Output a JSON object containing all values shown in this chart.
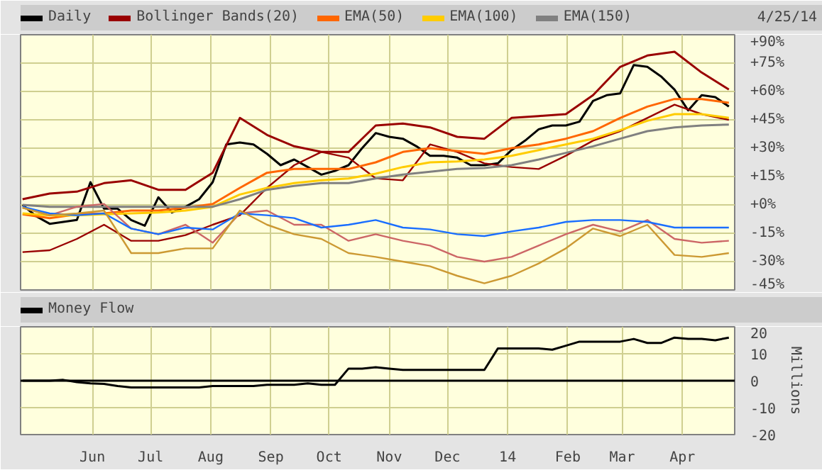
{
  "chart_data": [
    {
      "type": "line",
      "annotations": [
        "4/25/14"
      ],
      "x": [
        "2013-04-26",
        "2013-05-03",
        "2013-05-10",
        "2013-05-17",
        "2013-05-24",
        "2013-05-31",
        "2013-06-07",
        "2013-06-14",
        "2013-06-21",
        "2013-06-28",
        "2013-07-05",
        "2013-07-12",
        "2013-07-19",
        "2013-07-26",
        "2013-08-02",
        "2013-08-09",
        "2013-08-16",
        "2013-08-23",
        "2013-08-30",
        "2013-09-06",
        "2013-09-13",
        "2013-09-20",
        "2013-09-27",
        "2013-10-04",
        "2013-10-11",
        "2013-10-18",
        "2013-10-25",
        "2013-11-01",
        "2013-11-08",
        "2013-11-15",
        "2013-11-22",
        "2013-11-29",
        "2013-12-06",
        "2013-12-13",
        "2013-12-20",
        "2013-12-27",
        "2014-01-03",
        "2014-01-10",
        "2014-01-17",
        "2014-01-24",
        "2014-01-31",
        "2014-02-07",
        "2014-02-14",
        "2014-02-21",
        "2014-02-28",
        "2014-03-07",
        "2014-03-14",
        "2014-03-21",
        "2014-03-28",
        "2014-04-04",
        "2014-04-11",
        "2014-04-18",
        "2014-04-25"
      ],
      "series": [
        {
          "name": "Daily",
          "color": "#000000",
          "values": [
            0,
            -6,
            -10,
            -9,
            -8,
            12,
            -2,
            -2,
            -8,
            -11,
            4,
            -4,
            -1,
            3,
            12,
            32,
            33,
            32,
            27,
            21,
            24,
            20,
            16,
            18,
            21,
            30,
            38,
            36,
            35,
            31,
            26,
            26,
            25,
            21,
            21,
            22,
            29,
            34,
            40,
            42,
            42,
            44,
            55,
            58,
            59,
            74,
            73,
            68,
            61,
            50,
            58,
            57,
            52
          ]
        },
        {
          "name": "Bollinger Bands(20)",
          "color": "#990000",
          "x": [
            "2013-04-26",
            "2013-05-10",
            "2013-05-24",
            "2013-06-07",
            "2013-06-21",
            "2013-07-05",
            "2013-07-19",
            "2013-08-02",
            "2013-08-16",
            "2013-08-30",
            "2013-09-13",
            "2013-09-27",
            "2013-10-11",
            "2013-10-25",
            "2013-11-08",
            "2013-11-22",
            "2013-12-06",
            "2013-12-20",
            "2014-01-03",
            "2014-01-17",
            "2014-01-31",
            "2014-02-14",
            "2014-02-28",
            "2014-03-14",
            "2014-03-28",
            "2014-04-11",
            "2014-04-25"
          ],
          "values": [
            3,
            6,
            7,
            11.5,
            13,
            8,
            8,
            17,
            46,
            37,
            31,
            28,
            28,
            42,
            43,
            41,
            36,
            35,
            46,
            47,
            48,
            58,
            73,
            79,
            81,
            70,
            61
          ]
        },
        {
          "color": "#990000",
          "x": [
            "2013-04-26",
            "2013-05-10",
            "2013-05-24",
            "2013-06-07",
            "2013-06-21",
            "2013-07-05",
            "2013-07-19",
            "2013-08-02",
            "2013-08-16",
            "2013-08-30",
            "2013-09-13",
            "2013-09-27",
            "2013-10-11",
            "2013-10-25",
            "2013-11-08",
            "2013-11-22",
            "2013-12-06",
            "2013-12-20",
            "2014-01-03",
            "2014-01-17",
            "2014-01-31",
            "2014-02-14",
            "2014-02-28",
            "2014-03-14",
            "2014-03-28",
            "2014-04-11",
            "2014-04-25"
          ],
          "values": [
            -25,
            -24,
            -18,
            -10.5,
            -19,
            -19,
            -16,
            -10.5,
            -5.5,
            9,
            21,
            28,
            25,
            14,
            13,
            32,
            28,
            22,
            20,
            19,
            26,
            34,
            39,
            46,
            53,
            48,
            45
          ]
        },
        {
          "name": "EMA(50)",
          "color": "#ff6600",
          "x": [
            "2013-04-26",
            "2013-05-10",
            "2013-05-24",
            "2013-06-07",
            "2013-06-21",
            "2013-07-05",
            "2013-07-19",
            "2013-08-02",
            "2013-08-16",
            "2013-08-30",
            "2013-09-13",
            "2013-09-27",
            "2013-10-11",
            "2013-10-25",
            "2013-11-08",
            "2013-11-22",
            "2013-12-06",
            "2013-12-20",
            "2014-01-03",
            "2014-01-17",
            "2014-01-31",
            "2014-02-14",
            "2014-02-28",
            "2014-03-14",
            "2014-03-28",
            "2014-04-11",
            "2014-04-25"
          ],
          "values": [
            -5,
            -7,
            -5,
            -4.5,
            -3,
            -3,
            -1.5,
            0.5,
            9,
            17,
            19,
            19,
            19,
            22.5,
            28,
            30,
            28.5,
            27,
            30,
            32,
            35,
            39,
            46,
            52,
            56,
            56,
            54
          ]
        },
        {
          "name": "EMA(100)",
          "color": "#ffcc00",
          "x": [
            "2013-04-26",
            "2013-05-10",
            "2013-05-24",
            "2013-06-07",
            "2013-06-21",
            "2013-07-05",
            "2013-07-19",
            "2013-08-02",
            "2013-08-16",
            "2013-08-30",
            "2013-09-13",
            "2013-09-27",
            "2013-10-11",
            "2013-10-25",
            "2013-11-08",
            "2013-11-22",
            "2013-12-06",
            "2013-12-20",
            "2014-01-03",
            "2014-01-17",
            "2014-01-31",
            "2014-02-14",
            "2014-02-28",
            "2014-03-14",
            "2014-03-28",
            "2014-04-11",
            "2014-04-25"
          ],
          "values": [
            -4.5,
            -5.5,
            -5.5,
            -5,
            -4.5,
            -4,
            -3,
            -1,
            5.5,
            9,
            11.5,
            13,
            14,
            16.5,
            20,
            22.5,
            23,
            24,
            26,
            29,
            32,
            35,
            39.5,
            44.5,
            48,
            48,
            46
          ]
        },
        {
          "name": "EMA(150)",
          "color": "#808080",
          "x": [
            "2013-04-26",
            "2013-05-10",
            "2013-05-24",
            "2013-06-07",
            "2013-06-21",
            "2013-07-05",
            "2013-07-19",
            "2013-08-02",
            "2013-08-16",
            "2013-08-30",
            "2013-09-13",
            "2013-09-27",
            "2013-10-11",
            "2013-10-25",
            "2013-11-08",
            "2013-11-22",
            "2013-12-06",
            "2013-12-20",
            "2014-01-03",
            "2014-01-17",
            "2014-01-31",
            "2014-02-14",
            "2014-02-28",
            "2014-03-14",
            "2014-03-28",
            "2014-04-11",
            "2014-04-25"
          ],
          "values": [
            0,
            -1,
            -1,
            -1,
            -1,
            -1,
            -1,
            -1,
            3,
            8,
            10,
            11.5,
            11.5,
            14,
            16,
            17.5,
            19,
            19.5,
            21,
            24,
            27.5,
            31,
            35,
            39,
            41,
            42,
            42.5
          ]
        },
        {
          "color": "#cc6666",
          "x": [
            "2013-04-26",
            "2013-05-10",
            "2013-05-24",
            "2013-06-07",
            "2013-06-21",
            "2013-07-05",
            "2013-07-19",
            "2013-08-02",
            "2013-08-16",
            "2013-08-30",
            "2013-09-13",
            "2013-09-27",
            "2013-10-11",
            "2013-10-25",
            "2013-11-08",
            "2013-11-22",
            "2013-12-06",
            "2013-12-20",
            "2014-01-03",
            "2014-01-17",
            "2014-01-31",
            "2014-02-14",
            "2014-02-28",
            "2014-03-14",
            "2014-03-28",
            "2014-04-11",
            "2014-04-25"
          ],
          "values": [
            -1.5,
            -5.5,
            -1,
            0.5,
            -12.5,
            -15.5,
            -10.5,
            -20,
            -4.5,
            -3,
            -10.5,
            -10.5,
            -19,
            -15.5,
            -19,
            -21.5,
            -27.5,
            -30,
            -27.5,
            -21.5,
            -15.5,
            -10.5,
            -14,
            -8,
            -18,
            -20,
            -19
          ]
        },
        {
          "color": "#1a6eff",
          "x": [
            "2013-04-26",
            "2013-05-10",
            "2013-05-24",
            "2013-06-07",
            "2013-06-21",
            "2013-07-05",
            "2013-07-19",
            "2013-08-02",
            "2013-08-16",
            "2013-08-30",
            "2013-09-13",
            "2013-09-27",
            "2013-10-11",
            "2013-10-25",
            "2013-11-08",
            "2013-11-22",
            "2013-12-06",
            "2013-12-20",
            "2014-01-03",
            "2014-01-17",
            "2014-01-31",
            "2014-02-14",
            "2014-02-28",
            "2014-03-14",
            "2014-03-28",
            "2014-04-11",
            "2014-04-25"
          ],
          "values": [
            -1,
            -4.5,
            -5.5,
            -4.5,
            -12.5,
            -15.5,
            -12,
            -13,
            -4.5,
            -5.5,
            -7,
            -12,
            -10.5,
            -8,
            -12,
            -13,
            -15.5,
            -16.5,
            -14,
            -12,
            -9,
            -8,
            -8,
            -9,
            -12,
            -12,
            -12
          ]
        },
        {
          "color": "#cc9933",
          "x": [
            "2013-04-26",
            "2013-05-10",
            "2013-05-24",
            "2013-06-07",
            "2013-06-21",
            "2013-07-05",
            "2013-07-19",
            "2013-08-02",
            "2013-08-16",
            "2013-08-30",
            "2013-09-13",
            "2013-09-27",
            "2013-10-11",
            "2013-10-25",
            "2013-11-08",
            "2013-11-22",
            "2013-12-06",
            "2013-12-20",
            "2014-01-03",
            "2014-01-17",
            "2014-01-31",
            "2014-02-14",
            "2014-02-28",
            "2014-03-14",
            "2014-03-28",
            "2014-04-11",
            "2014-04-25"
          ],
          "values": [
            -1.5,
            -5.5,
            -4.5,
            -3,
            -25.5,
            -25.5,
            -23,
            -23,
            -3,
            -10.5,
            -15.5,
            -18,
            -25.5,
            -27.5,
            -30,
            -32.5,
            -37.5,
            -41.5,
            -37.5,
            -31,
            -23,
            -12.5,
            -16.5,
            -10.5,
            -26.5,
            -27.5,
            -25.5
          ]
        }
      ],
      "xlim": [
        "2013-04-25",
        "2014-04-28"
      ],
      "xticks": [
        {
          "value": "2013-06-01",
          "label": null
        },
        {
          "value": "2013-07-01",
          "label": null
        },
        {
          "value": "2013-08-01",
          "label": null
        },
        {
          "value": "2013-09-01",
          "label": null
        },
        {
          "value": "2013-10-01",
          "label": null
        },
        {
          "value": "2013-11-01",
          "label": null
        },
        {
          "value": "2013-12-01",
          "label": null
        },
        {
          "value": "2014-01-01",
          "label": null
        },
        {
          "value": "2014-02-01",
          "label": null
        },
        {
          "value": "2014-03-01",
          "label": null
        },
        {
          "value": "2014-04-01",
          "label": null
        }
      ],
      "ylim": [
        -45,
        90
      ],
      "yticks": [
        {
          "value": 90,
          "label": "+90%"
        },
        {
          "value": 75,
          "label": "+75%"
        },
        {
          "value": 60,
          "label": "+60%"
        },
        {
          "value": 45,
          "label": "+45%"
        },
        {
          "value": 30,
          "label": "+30%"
        },
        {
          "value": 15,
          "label": "+15%"
        },
        {
          "value": 0,
          "label": "+0%"
        },
        {
          "value": -15,
          "label": "-15%"
        },
        {
          "value": -30,
          "label": "-30%"
        },
        {
          "value": -45,
          "label": "-45%"
        }
      ],
      "grid": true,
      "legend": "top",
      "tick_labels": "y"
    },
    {
      "type": "line",
      "ylabel": "Millions",
      "x": [
        "2013-04-26",
        "2013-05-03",
        "2013-05-10",
        "2013-05-17",
        "2013-05-24",
        "2013-05-31",
        "2013-06-07",
        "2013-06-14",
        "2013-06-21",
        "2013-06-28",
        "2013-07-05",
        "2013-07-12",
        "2013-07-19",
        "2013-07-26",
        "2013-08-02",
        "2013-08-09",
        "2013-08-16",
        "2013-08-23",
        "2013-08-30",
        "2013-09-06",
        "2013-09-13",
        "2013-09-20",
        "2013-09-27",
        "2013-10-04",
        "2013-10-11",
        "2013-10-18",
        "2013-10-25",
        "2013-11-01",
        "2013-11-08",
        "2013-11-15",
        "2013-11-22",
        "2013-11-29",
        "2013-12-06",
        "2013-12-13",
        "2013-12-20",
        "2013-12-27",
        "2014-01-03",
        "2014-01-10",
        "2014-01-17",
        "2014-01-24",
        "2014-01-31",
        "2014-02-07",
        "2014-02-14",
        "2014-02-21",
        "2014-02-28",
        "2014-03-07",
        "2014-03-14",
        "2014-03-21",
        "2014-03-28",
        "2014-04-04",
        "2014-04-11",
        "2014-04-18",
        "2014-04-25"
      ],
      "series": [
        {
          "name": "Money Flow",
          "color": "#000000",
          "values": [
            0,
            0,
            0,
            0.3,
            -0.5,
            -1,
            -1.2,
            -2,
            -2.5,
            -2.5,
            -2.5,
            -2.5,
            -2.5,
            -2.5,
            -2,
            -2,
            -2,
            -2,
            -1.5,
            -1.5,
            -1.5,
            -1,
            -1.5,
            -1.5,
            4.5,
            4.5,
            5,
            4.5,
            4,
            4,
            4,
            4,
            4,
            4,
            4,
            12,
            12,
            12,
            12,
            11.5,
            13,
            14.5,
            14.5,
            14.5,
            14.5,
            15.5,
            14,
            14,
            16,
            15.5,
            15.5,
            15,
            16
          ]
        }
      ],
      "xlim": [
        "2013-04-25",
        "2014-04-28"
      ],
      "xticks": [
        {
          "value": "2013-06-01",
          "label": "Jun"
        },
        {
          "value": "2013-07-01",
          "label": "Jul"
        },
        {
          "value": "2013-08-01",
          "label": "Aug"
        },
        {
          "value": "2013-09-01",
          "label": "Sep"
        },
        {
          "value": "2013-10-01",
          "label": "Oct"
        },
        {
          "value": "2013-11-01",
          "label": "Nov"
        },
        {
          "value": "2013-12-01",
          "label": "Dec"
        },
        {
          "value": "2014-01-01",
          "label": "14"
        },
        {
          "value": "2014-02-01",
          "label": "Feb"
        },
        {
          "value": "2014-03-01",
          "label": "Mar"
        },
        {
          "value": "2014-04-01",
          "label": "Apr"
        }
      ],
      "ylim": [
        -20,
        20
      ],
      "yticks": [
        20,
        10,
        0,
        -10,
        -20
      ],
      "ref_lines": [
        {
          "axis": "y",
          "value": 0,
          "color": "#000000"
        }
      ],
      "grid": true,
      "legend": "top"
    }
  ]
}
